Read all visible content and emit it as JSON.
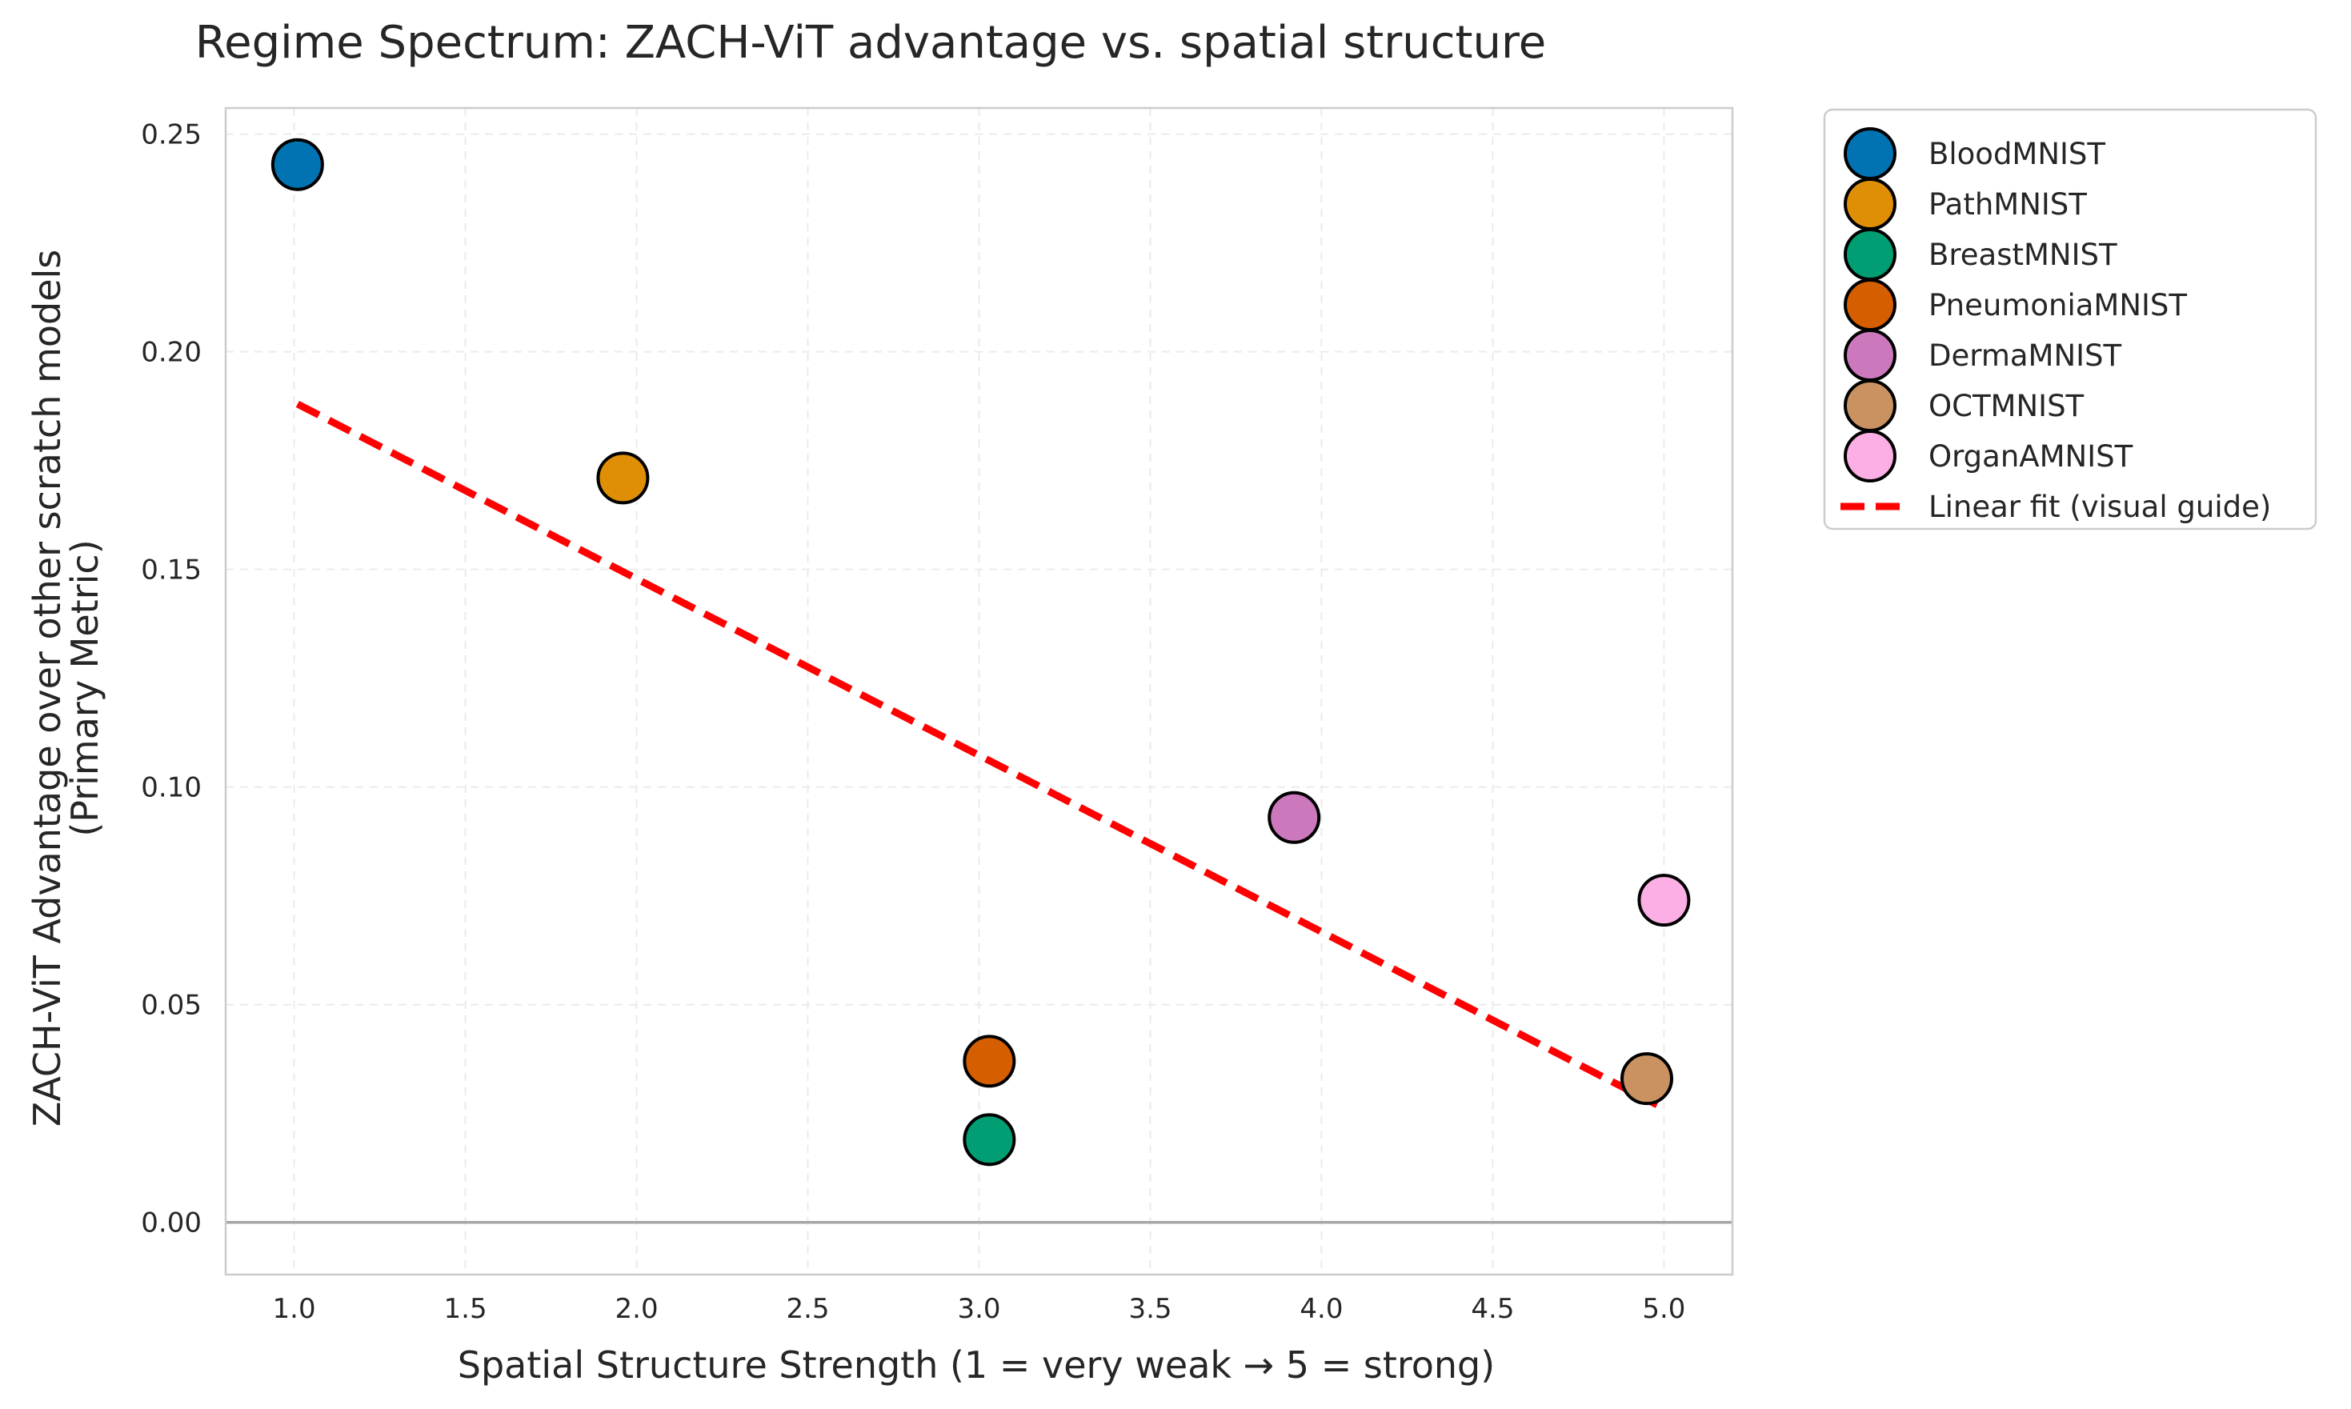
{
  "chart_data": {
    "type": "scatter",
    "title": "Regime Spectrum: ZACH-ViT advantage vs. spatial structure",
    "xlabel": "Spatial Structure Strength (1 = very weak → 5 = strong)",
    "ylabel_lines": [
      "ZACH-ViT Advantage over other scratch models",
      "(Primary Metric)"
    ],
    "xlim": [
      0.8,
      5.2
    ],
    "ylim": [
      -0.012,
      0.256
    ],
    "xticks": [
      1.0,
      1.5,
      2.0,
      2.5,
      3.0,
      3.5,
      4.0,
      4.5,
      5.0
    ],
    "xtick_labels": [
      "1.0",
      "1.5",
      "2.0",
      "2.5",
      "3.0",
      "3.5",
      "4.0",
      "4.5",
      "5.0"
    ],
    "yticks": [
      0.0,
      0.05,
      0.1,
      0.15,
      0.2,
      0.25
    ],
    "ytick_labels": [
      "0.00",
      "0.05",
      "0.10",
      "0.15",
      "0.20",
      "0.25"
    ],
    "grid": true,
    "legend_position": "outside top-right",
    "series": [
      {
        "name": "BloodMNIST",
        "x": 1.01,
        "y": 0.243,
        "color": "#0173b2"
      },
      {
        "name": "PathMNIST",
        "x": 1.96,
        "y": 0.171,
        "color": "#de8f05"
      },
      {
        "name": "BreastMNIST",
        "x": 3.03,
        "y": 0.019,
        "color": "#029e73"
      },
      {
        "name": "PneumoniaMNIST",
        "x": 3.03,
        "y": 0.037,
        "color": "#d55e00"
      },
      {
        "name": "DermaMNIST",
        "x": 3.92,
        "y": 0.093,
        "color": "#cc78bc"
      },
      {
        "name": "OCTMNIST",
        "x": 4.95,
        "y": 0.033,
        "color": "#ca9161"
      },
      {
        "name": "OrganAMNIST",
        "x": 5.0,
        "y": 0.074,
        "color": "#fbafe4"
      }
    ],
    "fit_line": {
      "name": "Linear fit (visual guide)",
      "x": [
        1.01,
        4.98
      ],
      "y": [
        0.188,
        0.027
      ],
      "color": "#ff0000"
    },
    "reference_line": {
      "y": 0.0,
      "color": "#a6a6a6"
    }
  }
}
